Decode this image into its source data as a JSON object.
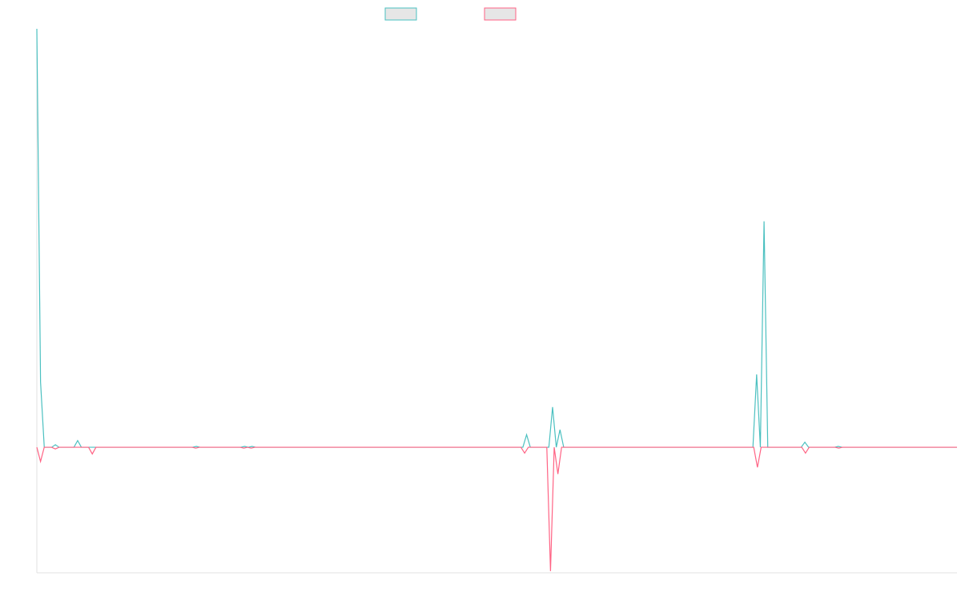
{
  "chart_data": {
    "type": "line",
    "title": "",
    "xlabel": "",
    "ylabel": "",
    "ylim": [
      -1.5,
      5
    ],
    "grid": false,
    "legend_position": "top-center",
    "series": [
      {
        "color": "#4bc0c0",
        "fill": "#e6e6e6",
        "values": [
          5,
          0.78,
          0,
          0,
          0,
          0.03,
          0,
          0,
          0,
          0,
          0,
          0.08,
          0,
          0,
          0,
          0,
          0,
          0,
          0,
          0,
          0,
          0,
          0,
          0,
          0,
          0,
          0,
          0,
          0,
          0,
          0,
          0,
          0,
          0,
          0,
          0,
          0,
          0,
          0,
          0,
          0,
          0,
          0,
          0.01,
          0,
          0,
          0,
          0,
          0,
          0,
          0,
          0,
          0,
          0,
          0,
          0,
          0.01,
          0,
          0.01,
          0,
          0,
          0,
          0,
          0,
          0,
          0,
          0,
          0,
          0,
          0,
          0,
          0,
          0,
          0,
          0,
          0,
          0,
          0,
          0,
          0,
          0,
          0,
          0,
          0,
          0,
          0,
          0,
          0,
          0,
          0,
          0,
          0,
          0,
          0,
          0,
          0,
          0,
          0,
          0,
          0,
          0,
          0,
          0,
          0,
          0,
          0,
          0,
          0,
          0,
          0,
          0,
          0,
          0,
          0,
          0,
          0,
          0,
          0,
          0,
          0,
          0,
          0,
          0,
          0,
          0,
          0,
          0,
          0,
          0,
          0,
          0,
          0,
          0.15,
          0,
          0,
          0,
          0,
          0,
          0,
          0.48,
          0,
          0.21,
          0,
          0,
          0,
          0,
          0,
          0,
          0,
          0,
          0,
          0,
          0,
          0,
          0,
          0,
          0,
          0,
          0,
          0,
          0,
          0,
          0,
          0,
          0,
          0,
          0,
          0,
          0,
          0,
          0,
          0,
          0,
          0,
          0,
          0,
          0,
          0,
          0,
          0,
          0,
          0,
          0,
          0,
          0,
          0,
          0,
          0,
          0,
          0,
          0,
          0,
          0,
          0,
          0.87,
          0,
          2.7,
          0,
          0,
          0,
          0,
          0,
          0,
          0,
          0,
          0,
          0,
          0.06,
          0,
          0,
          0,
          0,
          0,
          0,
          0,
          0,
          0.01,
          0,
          0,
          0,
          0,
          0,
          0,
          0,
          0,
          0,
          0,
          0,
          0,
          0,
          0,
          0,
          0,
          0,
          0,
          0,
          0,
          0,
          0,
          0,
          0,
          0,
          0,
          0,
          0,
          0,
          0,
          0,
          0
        ]
      },
      {
        "color": "#ff6384",
        "fill": "#e6e6e6",
        "values": [
          0,
          -0.17,
          0,
          0,
          0,
          -0.02,
          0,
          0,
          0,
          0,
          0,
          0,
          0,
          0,
          0,
          -0.08,
          0,
          0,
          0,
          0,
          0,
          0,
          0,
          0,
          0,
          0,
          0,
          0,
          0,
          0,
          0,
          0,
          0,
          0,
          0,
          0,
          0,
          0,
          0,
          0,
          0,
          0,
          0,
          -0.01,
          0,
          0,
          0,
          0,
          0,
          0,
          0,
          0,
          0,
          0,
          0,
          0,
          -0.01,
          0,
          -0.01,
          0,
          0,
          0,
          0,
          0,
          0,
          0,
          0,
          0,
          0,
          0,
          0,
          0,
          0,
          0,
          0,
          0,
          0,
          0,
          0,
          0,
          0,
          0,
          0,
          0,
          0,
          0,
          0,
          0,
          0,
          0,
          0,
          0,
          0,
          0,
          0,
          0,
          0,
          0,
          0,
          0,
          0,
          0,
          0,
          0,
          0,
          0,
          0,
          0,
          0,
          0,
          0,
          0,
          0,
          0,
          0,
          0,
          0,
          0,
          0,
          0,
          0,
          0,
          0,
          0,
          0,
          0,
          0,
          0,
          0,
          0,
          0,
          0,
          -0.07,
          0,
          0,
          0,
          0,
          0,
          0,
          -1.48,
          0,
          -0.32,
          0,
          0,
          0,
          0,
          0,
          0,
          0,
          0,
          0,
          0,
          0,
          0,
          0,
          0,
          0,
          0,
          0,
          0,
          0,
          0,
          0,
          0,
          0,
          0,
          0,
          0,
          0,
          0,
          0,
          0,
          0,
          0,
          0,
          0,
          0,
          0,
          0,
          0,
          0,
          0,
          0,
          0,
          0,
          0,
          0,
          0,
          0,
          0,
          0,
          0,
          0,
          0,
          0,
          -0.24,
          0,
          0,
          0,
          0,
          0,
          0,
          0,
          0,
          0,
          0,
          0,
          0,
          -0.07,
          0,
          0,
          0,
          0,
          0,
          0,
          0,
          0,
          -0.01,
          0,
          0,
          0,
          0,
          0,
          0,
          0,
          0,
          0,
          0,
          0,
          0,
          0,
          0,
          0,
          0,
          0,
          0,
          0,
          0,
          0,
          0,
          0,
          0,
          0,
          0,
          0,
          0,
          0,
          0,
          0,
          0
        ]
      }
    ]
  }
}
